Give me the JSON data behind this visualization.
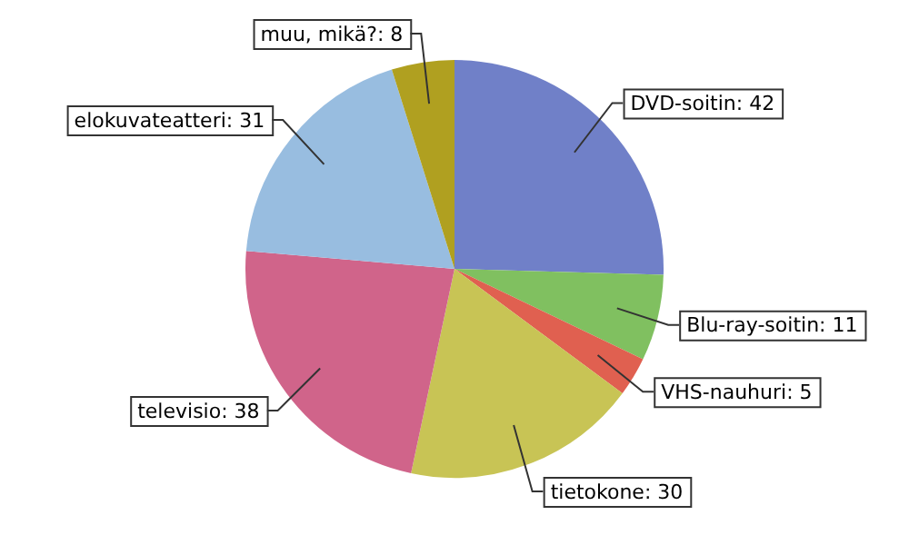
{
  "chart_data": {
    "type": "pie",
    "categories": [
      "DVD-soitin",
      "Blu-ray-soitin",
      "VHS-nauhuri",
      "tietokone",
      "televisio",
      "elokuvateatteri",
      "muu, mikä?"
    ],
    "values": [
      42,
      11,
      5,
      30,
      38,
      31,
      8
    ],
    "colors": [
      "#7080c8",
      "#80c060",
      "#e06050",
      "#c8c455",
      "#d0648a",
      "#98bde0",
      "#b0a020"
    ],
    "value_labels": [
      ": 42",
      ": 11",
      ": 5",
      ": 30",
      ": 38",
      ": 31",
      ": 8"
    ],
    "legend": false
  }
}
